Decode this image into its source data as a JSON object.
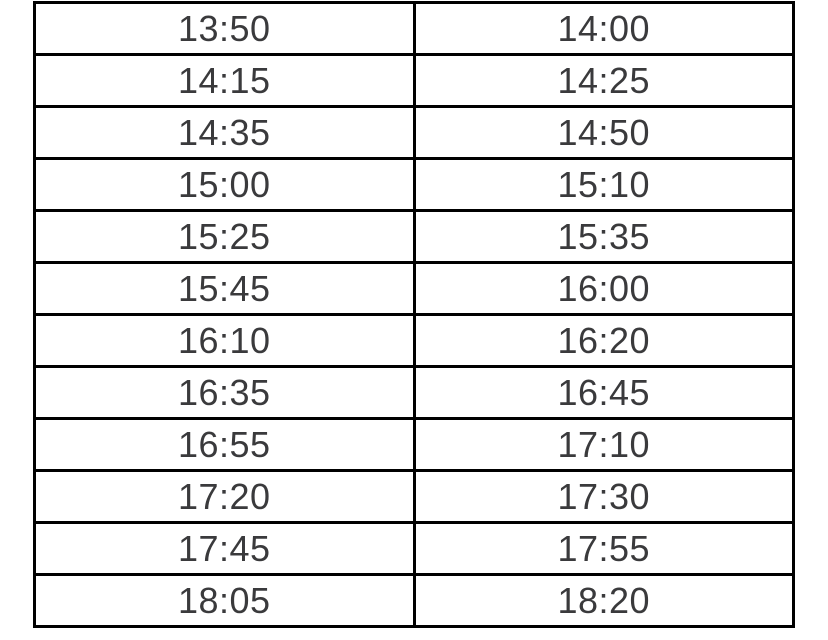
{
  "timetable": {
    "border_color": "#000000",
    "text_color": "#3a3a3c",
    "background_color": "#ffffff",
    "rows": [
      [
        "13:50",
        "14:00"
      ],
      [
        "14:15",
        "14:25"
      ],
      [
        "14:35",
        "14:50"
      ],
      [
        "15:00",
        "15:10"
      ],
      [
        "15:25",
        "15:35"
      ],
      [
        "15:45",
        "16:00"
      ],
      [
        "16:10",
        "16:20"
      ],
      [
        "16:35",
        "16:45"
      ],
      [
        "16:55",
        "17:10"
      ],
      [
        "17:20",
        "17:30"
      ],
      [
        "17:45",
        "17:55"
      ],
      [
        "18:05",
        "18:20"
      ]
    ]
  }
}
